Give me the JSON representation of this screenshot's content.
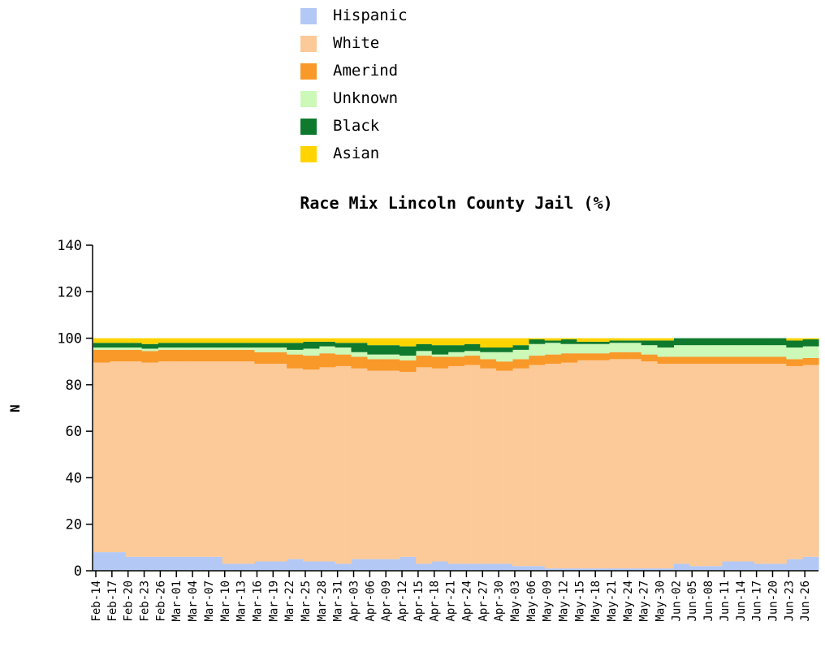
{
  "chart_data": {
    "type": "area",
    "stacked": true,
    "title": "Race Mix Lincoln County Jail (%)",
    "subtitle": "",
    "xlabel": "",
    "ylabel": "N",
    "ylim": [
      0,
      140
    ],
    "yticks": [
      0,
      20,
      40,
      60,
      80,
      100,
      120,
      140
    ],
    "legend_position": "top",
    "grid": false,
    "x_tick_labels": [
      "Feb-14",
      "Feb-17",
      "Feb-20",
      "Feb-23",
      "Feb-26",
      "Mar-01",
      "Mar-04",
      "Mar-07",
      "Mar-10",
      "Mar-13",
      "Mar-16",
      "Mar-19",
      "Mar-22",
      "Mar-25",
      "Mar-28",
      "Mar-31",
      "Apr-03",
      "Apr-06",
      "Apr-09",
      "Apr-12",
      "Apr-15",
      "Apr-18",
      "Apr-21",
      "Apr-24",
      "Apr-27",
      "Apr-30",
      "May-03",
      "May-06",
      "May-09",
      "May-12",
      "May-15",
      "May-18",
      "May-21",
      "May-24",
      "May-27",
      "May-30",
      "Jun-02",
      "Jun-05",
      "Jun-08",
      "Jun-11",
      "Jun-14",
      "Jun-17",
      "Jun-20",
      "Jun-23",
      "Jun-26"
    ],
    "series": [
      {
        "name": "Hispanic",
        "color": "#b3c8f5",
        "values": [
          8,
          8,
          6,
          6,
          6,
          6,
          6,
          6,
          3,
          3,
          4,
          4,
          5,
          4,
          4,
          3,
          5,
          5,
          5,
          6,
          3,
          4,
          3,
          3,
          3,
          3,
          2,
          2,
          1,
          1,
          1,
          1,
          1,
          1,
          1,
          1,
          3,
          2,
          2,
          4,
          4,
          3,
          3,
          5,
          6
        ]
      },
      {
        "name": "White",
        "color": "#fcc998",
        "values": [
          81.5,
          82,
          84,
          83.5,
          84,
          84,
          84,
          84,
          87,
          87,
          85,
          85,
          82,
          82.5,
          83.5,
          85,
          82,
          81,
          81,
          79.5,
          84.5,
          83,
          85,
          85.5,
          84,
          83,
          85,
          86.5,
          88,
          88.5,
          89.5,
          89.5,
          90,
          90,
          89,
          88,
          86,
          87,
          87,
          85,
          85,
          86,
          86,
          83,
          82.5
        ]
      },
      {
        "name": "Amerind",
        "color": "#f8992a",
        "values": [
          5.5,
          5,
          5,
          5,
          5,
          5,
          5,
          5,
          5,
          5,
          5,
          5,
          6,
          6,
          6,
          5,
          5,
          5,
          5,
          5,
          5,
          5,
          4,
          4,
          4,
          4,
          4,
          4,
          4,
          4,
          3,
          3,
          3,
          3,
          3,
          3,
          3,
          3,
          3,
          3,
          3,
          3,
          3,
          3,
          3
        ]
      },
      {
        "name": "Unknown",
        "color": "#ccf8b8",
        "values": [
          1,
          1,
          1,
          1,
          1,
          1,
          1,
          1,
          1,
          1,
          2,
          2,
          2,
          3,
          3,
          3,
          2,
          2,
          2,
          2,
          2,
          1,
          2,
          2,
          3,
          4,
          4,
          5,
          5,
          4,
          4,
          4,
          4,
          4,
          4,
          4,
          5,
          5,
          5,
          5,
          5,
          5,
          5,
          5,
          5
        ]
      },
      {
        "name": "Black",
        "color": "#0f7a2e",
        "values": [
          2,
          2,
          2,
          2,
          2,
          2,
          2,
          2,
          2,
          2,
          2,
          2,
          3,
          3,
          2,
          2,
          4,
          4,
          4,
          4,
          3,
          4,
          3,
          3,
          2,
          2,
          2,
          2,
          1,
          2,
          1,
          1,
          1,
          1,
          2,
          3,
          3,
          3,
          3,
          3,
          3,
          3,
          3,
          3,
          3
        ]
      },
      {
        "name": "Asian",
        "color": "#ffd400",
        "values": [
          2,
          2,
          2,
          2.5,
          2,
          2,
          2,
          2,
          2,
          2,
          2,
          2,
          2,
          1.5,
          1.5,
          2,
          2,
          3,
          3,
          3.5,
          2.5,
          3,
          3,
          2.5,
          4,
          4,
          3,
          0.5,
          1,
          0.5,
          1.5,
          1.5,
          1,
          1,
          1,
          1,
          0,
          0,
          0,
          0,
          0,
          0,
          0,
          1,
          0.5
        ]
      }
    ]
  }
}
